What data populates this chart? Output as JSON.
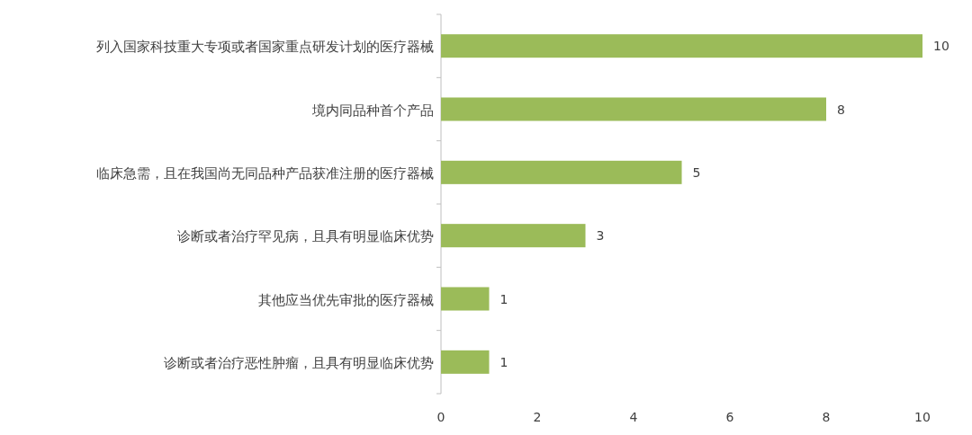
{
  "chart_data": {
    "type": "bar",
    "orientation": "horizontal",
    "categories": [
      "列入国家科技重大专项或者国家重点研发计划的医疗器械",
      "境内同品种首个产品",
      "临床急需，且在我国尚无同品种产品获准注册的医疗器械",
      "诊断或者治疗罕见病，且具有明显临床优势",
      "其他应当优先审批的医疗器械",
      "诊断或者治疗恶性肿瘤，且具有明显临床优势"
    ],
    "values": [
      10,
      8,
      5,
      3,
      1,
      1
    ],
    "color": "#9bbb59",
    "xlim": [
      0,
      10
    ],
    "xticks": [
      0,
      2,
      4,
      6,
      8,
      10
    ],
    "data_labels": true
  }
}
